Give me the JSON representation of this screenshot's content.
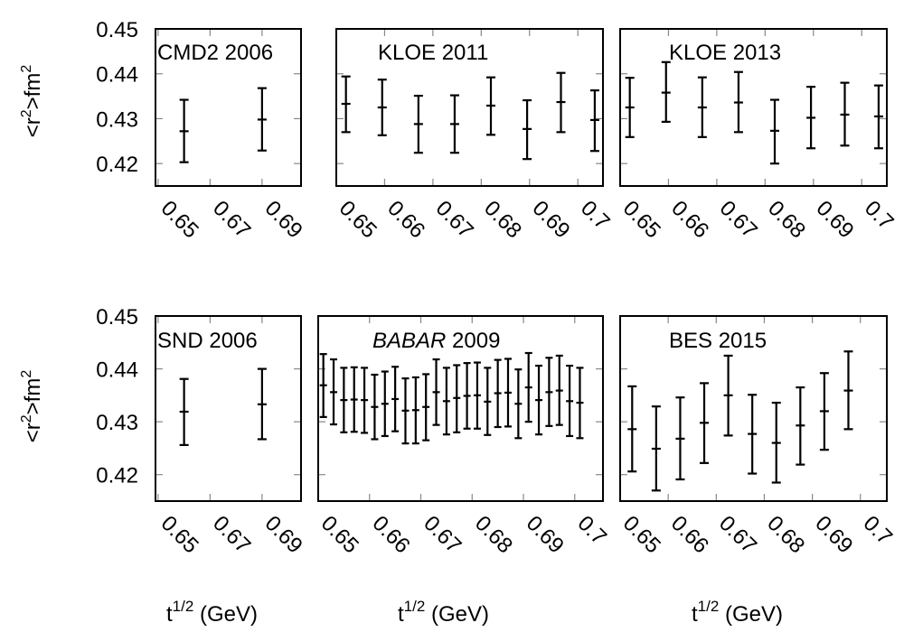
{
  "figure": {
    "ylabel": "<r2>fm2",
    "ylabel_parts": {
      "lt": "<r",
      "sup1": "2",
      "mid": ">fm",
      "sup2": "2"
    },
    "xlabel_parts": {
      "base": "t",
      "sup": "1/2",
      "unit": " (GeV)"
    }
  },
  "chart_data": [
    {
      "type": "scatter",
      "title": "CMD2 2006",
      "title_italic": "",
      "row": "top",
      "column": "left",
      "xlim": [
        0.649,
        0.705
      ],
      "ylim": [
        0.415,
        0.45
      ],
      "xticks": [
        "0.65",
        "0.67",
        "0.69"
      ],
      "xtick_values": [
        0.65,
        0.67,
        0.69
      ],
      "yticks": [
        "0.45",
        "0.44",
        "0.43",
        "0.42"
      ],
      "ytick_values": [
        0.45,
        0.44,
        0.43,
        0.42
      ],
      "x": [
        0.66,
        0.69
      ],
      "y": [
        0.4272,
        0.4298
      ],
      "yerr_low": [
        0.4203,
        0.4229
      ],
      "yerr_high": [
        0.4342,
        0.4368
      ]
    },
    {
      "type": "scatter",
      "title": "KLOE 2011",
      "title_italic": "",
      "row": "top",
      "column": "middle",
      "xlim": [
        0.65,
        0.7052
      ],
      "ylim": [
        0.415,
        0.45
      ],
      "xticks": [
        "0.65",
        "0.66",
        "0.67",
        "0.68",
        "0.69",
        "0.7"
      ],
      "xtick_values": [
        0.65,
        0.66,
        0.67,
        0.68,
        0.69,
        0.7
      ],
      "x": [
        0.652,
        0.6595,
        0.667,
        0.6745,
        0.682,
        0.6895,
        0.6965,
        0.7035
      ],
      "y": [
        0.4333,
        0.4325,
        0.4288,
        0.4288,
        0.4329,
        0.4277,
        0.4337,
        0.4297
      ],
      "yerr_low": [
        0.427,
        0.4263,
        0.4224,
        0.4224,
        0.4264,
        0.421,
        0.427,
        0.4228
      ],
      "yerr_high": [
        0.4394,
        0.4387,
        0.4351,
        0.4352,
        0.4392,
        0.4341,
        0.4402,
        0.4363
      ]
    },
    {
      "type": "scatter",
      "title": "KLOE 2013",
      "title_italic": "",
      "row": "top",
      "column": "right",
      "xlim": [
        0.65,
        0.7052
      ],
      "ylim": [
        0.415,
        0.45
      ],
      "xticks": [
        "0.65",
        "0.66",
        "0.67",
        "0.68",
        "0.69",
        "0.7"
      ],
      "xtick_values": [
        0.65,
        0.66,
        0.67,
        0.68,
        0.69,
        0.7
      ],
      "x": [
        0.652,
        0.6595,
        0.667,
        0.6745,
        0.682,
        0.6895,
        0.6965,
        0.7035
      ],
      "y": [
        0.4325,
        0.4358,
        0.4325,
        0.4336,
        0.4273,
        0.4302,
        0.4309,
        0.4305
      ],
      "yerr_low": [
        0.4259,
        0.4293,
        0.4259,
        0.427,
        0.42,
        0.4234,
        0.424,
        0.4234
      ],
      "yerr_high": [
        0.4391,
        0.4426,
        0.4392,
        0.4404,
        0.4342,
        0.4371,
        0.438,
        0.4374
      ]
    },
    {
      "type": "scatter",
      "title": "SND 2006",
      "title_italic": "",
      "row": "bottom",
      "column": "left",
      "xlim": [
        0.649,
        0.705
      ],
      "ylim": [
        0.415,
        0.45
      ],
      "xticks": [
        "0.65",
        "0.67",
        "0.69"
      ],
      "xtick_values": [
        0.65,
        0.67,
        0.69
      ],
      "yticks": [
        "0.45",
        "0.44",
        "0.43",
        "0.42"
      ],
      "ytick_values": [
        0.45,
        0.44,
        0.43,
        0.42
      ],
      "x": [
        0.66,
        0.69
      ],
      "y": [
        0.4319,
        0.4333
      ],
      "yerr_low": [
        0.4256,
        0.4267
      ],
      "yerr_high": [
        0.4381,
        0.44
      ]
    },
    {
      "type": "scatter",
      "title": " 2009",
      "title_italic": "BABAR",
      "row": "bottom",
      "column": "middle",
      "xlim": [
        0.65,
        0.7055
      ],
      "ylim": [
        0.415,
        0.45
      ],
      "xticks": [
        "0.65",
        "0.66",
        "0.67",
        "0.68",
        "0.69",
        "0.7"
      ],
      "xtick_values": [
        0.65,
        0.66,
        0.67,
        0.68,
        0.69,
        0.7
      ],
      "x": [
        0.651,
        0.653,
        0.655,
        0.657,
        0.659,
        0.661,
        0.663,
        0.665,
        0.667,
        0.669,
        0.671,
        0.673,
        0.675,
        0.677,
        0.679,
        0.681,
        0.683,
        0.685,
        0.687,
        0.689,
        0.691,
        0.693,
        0.695,
        0.697,
        0.699,
        0.701
      ],
      "y": [
        0.4369,
        0.4356,
        0.4341,
        0.4342,
        0.4341,
        0.4328,
        0.4334,
        0.4343,
        0.4321,
        0.4322,
        0.4328,
        0.4356,
        0.4339,
        0.4345,
        0.4349,
        0.435,
        0.4338,
        0.4354,
        0.4355,
        0.4334,
        0.4365,
        0.4341,
        0.4356,
        0.4359,
        0.4339,
        0.4336
      ],
      "yerr_low": [
        0.4309,
        0.4295,
        0.428,
        0.4281,
        0.4279,
        0.4267,
        0.4273,
        0.4282,
        0.4259,
        0.4259,
        0.4265,
        0.4294,
        0.4276,
        0.428,
        0.4287,
        0.4287,
        0.4275,
        0.429,
        0.4291,
        0.4269,
        0.43,
        0.4276,
        0.4292,
        0.4294,
        0.4273,
        0.4269
      ],
      "yerr_high": [
        0.4428,
        0.4418,
        0.4402,
        0.4403,
        0.4402,
        0.4389,
        0.4395,
        0.4404,
        0.4382,
        0.4384,
        0.439,
        0.4418,
        0.4402,
        0.4407,
        0.4411,
        0.4412,
        0.4402,
        0.4417,
        0.4419,
        0.4399,
        0.443,
        0.4406,
        0.4421,
        0.4425,
        0.4406,
        0.4402
      ]
    },
    {
      "type": "scatter",
      "title": "BES 2015",
      "title_italic": "",
      "row": "bottom",
      "column": "right",
      "xlim": [
        0.65,
        0.7055
      ],
      "ylim": [
        0.415,
        0.45
      ],
      "xticks": [
        "0.65",
        "0.66",
        "0.67",
        "0.68",
        "0.69",
        "0.7"
      ],
      "xtick_values": [
        0.65,
        0.66,
        0.67,
        0.68,
        0.69,
        0.7
      ],
      "x": [
        0.6525,
        0.6575,
        0.6625,
        0.6675,
        0.6725,
        0.6775,
        0.6825,
        0.6875,
        0.6925,
        0.6975
      ],
      "y": [
        0.4286,
        0.4249,
        0.4268,
        0.4298,
        0.435,
        0.4277,
        0.426,
        0.4293,
        0.432,
        0.4359
      ],
      "yerr_low": [
        0.4206,
        0.417,
        0.4191,
        0.4222,
        0.4274,
        0.4202,
        0.4185,
        0.4219,
        0.4247,
        0.4286
      ],
      "yerr_high": [
        0.4367,
        0.4329,
        0.4346,
        0.4373,
        0.4425,
        0.4351,
        0.4336,
        0.4365,
        0.4392,
        0.4433
      ]
    }
  ]
}
